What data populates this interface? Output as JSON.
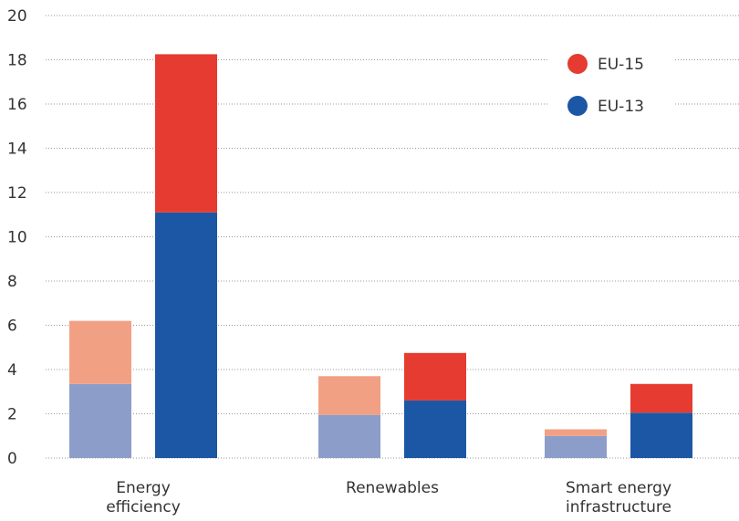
{
  "chart_data": {
    "type": "bar",
    "stacked": true,
    "categories": [
      [
        "Energy",
        "efficiency"
      ],
      [
        "Renewables"
      ],
      [
        "Smart energy",
        "infrastructure"
      ]
    ],
    "groups": [
      {
        "name": "",
        "style": "light",
        "stacks": [
          {
            "name": "EU-13",
            "values": [
              3.35,
              1.95,
              1.0
            ]
          },
          {
            "name": "EU-15",
            "values": [
              2.85,
              1.75,
              0.3
            ]
          }
        ]
      },
      {
        "name": "",
        "style": "dark",
        "stacks": [
          {
            "name": "EU-13",
            "values": [
              11.1,
              2.6,
              2.05
            ]
          },
          {
            "name": "EU-15",
            "values": [
              7.15,
              2.15,
              1.3
            ]
          }
        ]
      }
    ],
    "legend": [
      {
        "name": "EU-15",
        "color": "#e63b30"
      },
      {
        "name": "EU-13",
        "color": "#1c57a5"
      }
    ],
    "colors": {
      "EU-13": {
        "light": "#8d9dca",
        "dark": "#1c57a5"
      },
      "EU-15": {
        "light": "#f2a084",
        "dark": "#e63b30"
      }
    },
    "ylim": [
      0,
      20
    ],
    "yticks": [
      0,
      2,
      4,
      6,
      8,
      10,
      12,
      14,
      16,
      18,
      20
    ],
    "grid": true,
    "grid_style": "dotted",
    "legend_position": "top-right",
    "title": "",
    "xlabel": "",
    "ylabel": ""
  }
}
